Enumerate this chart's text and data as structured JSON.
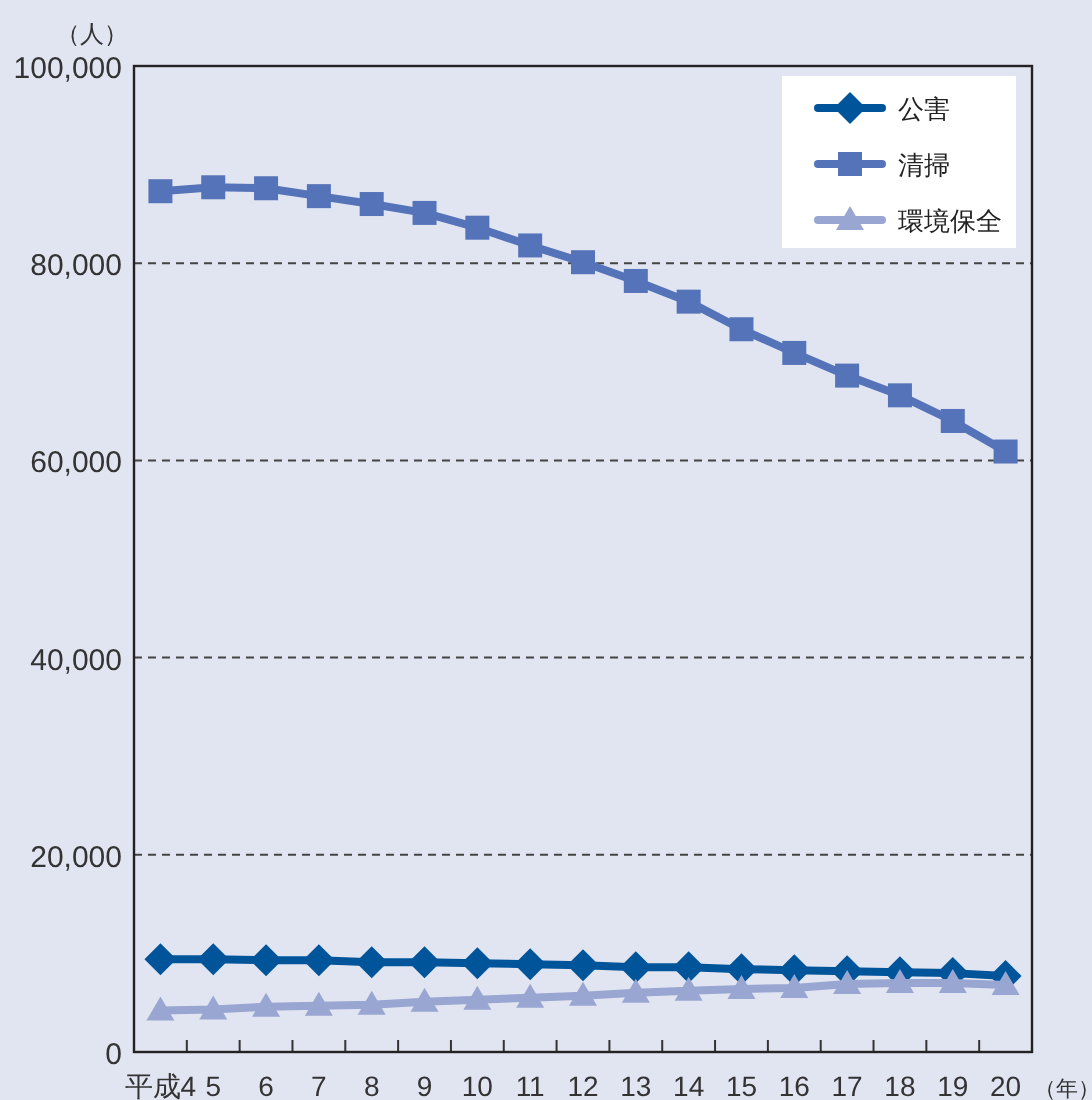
{
  "chart_data": {
    "type": "line",
    "ylabel": "（人）",
    "xlabel": "（年）",
    "categories": [
      "平成4",
      "5",
      "6",
      "7",
      "8",
      "9",
      "10",
      "11",
      "12",
      "13",
      "14",
      "15",
      "16",
      "17",
      "18",
      "19",
      "20"
    ],
    "series": [
      {
        "name": "公害",
        "color": "#00549a",
        "marker": "diamond",
        "values": [
          9400,
          9400,
          9300,
          9300,
          9100,
          9100,
          9000,
          8900,
          8800,
          8600,
          8600,
          8400,
          8300,
          8200,
          8100,
          8000,
          7700
        ]
      },
      {
        "name": "清掃",
        "color": "#5573b8",
        "marker": "square",
        "values": [
          87300,
          87700,
          87600,
          86800,
          86000,
          85100,
          83600,
          81800,
          80100,
          78200,
          76100,
          73300,
          70900,
          68600,
          66600,
          64000,
          60900
        ]
      },
      {
        "name": "環境保全",
        "color": "#9aa6d2",
        "marker": "triangle",
        "values": [
          4200,
          4300,
          4600,
          4700,
          4800,
          5100,
          5300,
          5500,
          5700,
          6000,
          6200,
          6400,
          6500,
          6900,
          7000,
          7000,
          6800
        ]
      }
    ],
    "ylim": [
      0,
      100000
    ],
    "yticks": [
      {
        "value": 0,
        "label": "0"
      },
      {
        "value": 20000,
        "label": "20,000"
      },
      {
        "value": 40000,
        "label": "40,000"
      },
      {
        "value": 60000,
        "label": "60,000"
      },
      {
        "value": 80000,
        "label": "80,000"
      },
      {
        "value": 100000,
        "label": "100,000"
      }
    ],
    "grid": "y",
    "legend": "top right"
  }
}
